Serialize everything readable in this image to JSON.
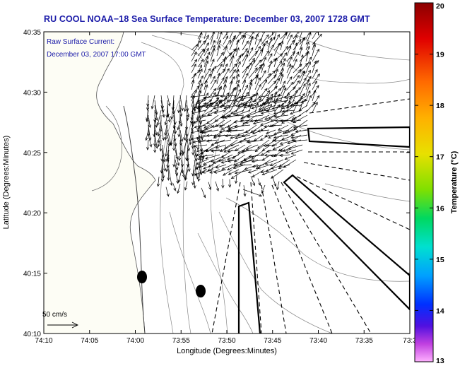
{
  "title": "RU COOL  NOAA−18  Sea Surface Temperature:  December 03, 2007 1728 GMT",
  "annotation": {
    "line1": "Raw Surface Current:",
    "line2": "December 03, 2007 17:00 GMT"
  },
  "scale": {
    "label": "50 cm/s"
  },
  "axes": {
    "xlabel": "Longitude (Degrees:Minutes)",
    "ylabel": "Latitude (Degrees:Minutes)",
    "x_ticks": [
      "74:10",
      "74:05",
      "74:00",
      "73:55",
      "73:50",
      "73:45",
      "73:40",
      "73:35",
      "73:3"
    ],
    "y_ticks": [
      "40:35",
      "40:30",
      "40:25",
      "40:20",
      "40:15",
      "40:10"
    ]
  },
  "colorbar": {
    "label": "Temperature (°C)",
    "ticks": [
      "20",
      "19",
      "18",
      "17",
      "16",
      "15",
      "14",
      "13"
    ],
    "range": [
      13,
      20
    ]
  },
  "colors": {
    "title": "#1a1aa8",
    "contour": "#888888",
    "coast": "#555555",
    "land": "#fdfdf5"
  }
}
